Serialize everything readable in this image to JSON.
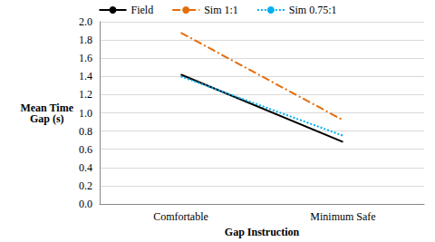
{
  "chart_data": {
    "type": "line",
    "x_label": "Gap Instruction",
    "y_label": "Mean Time\nGap (s)",
    "categories": [
      "Comfortable",
      "Minimum Safe"
    ],
    "series": [
      {
        "name": "Field",
        "color": "#000000",
        "line_style": "solid",
        "values": [
          1.42,
          0.68
        ]
      },
      {
        "name": "Sim 1:1",
        "color": "#e46c0a",
        "line_style": "dashdot",
        "values": [
          1.88,
          0.92
        ]
      },
      {
        "name": "Sim 0.75:1",
        "color": "#00b0f0",
        "line_style": "dotted",
        "values": [
          1.4,
          0.75
        ]
      }
    ],
    "ylim": [
      0,
      2
    ],
    "yticks": [
      {
        "value": 0,
        "label": "0.0"
      },
      {
        "value": 0.2,
        "label": "0.2"
      },
      {
        "value": 0.4,
        "label": "0.4"
      },
      {
        "value": 0.6,
        "label": "0.6"
      },
      {
        "value": 0.8,
        "label": "0.8"
      },
      {
        "value": 1,
        "label": "1.0"
      },
      {
        "value": 1.2,
        "label": "1.2"
      },
      {
        "value": 1.4,
        "label": "1.4"
      },
      {
        "value": 1.6,
        "label": "1.6"
      },
      {
        "value": 1.8,
        "label": "1.8"
      },
      {
        "value": 2,
        "label": "2.0"
      }
    ],
    "grid": true,
    "legend": "top",
    "marker": "none"
  }
}
